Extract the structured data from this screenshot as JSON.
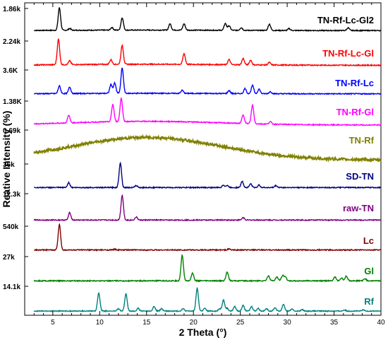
{
  "chart_data": {
    "type": "line",
    "xlabel": "2 Theta (°)",
    "ylabel": "Reative Intensity (%)",
    "xlim": [
      2,
      40
    ],
    "x_ticks": [
      "5",
      "10",
      "15",
      "20",
      "25",
      "30",
      "35",
      "40"
    ],
    "grid": false,
    "series": [
      {
        "name": "TN-Rf-Lc-Gl2",
        "scale_label": "1.86k",
        "color": "#000000",
        "peaks": [
          [
            5.7,
            1.0
          ],
          [
            6.8,
            0.08
          ],
          [
            11.3,
            0.12
          ],
          [
            12.4,
            0.55
          ],
          [
            17.5,
            0.28
          ],
          [
            19.0,
            0.28
          ],
          [
            23.4,
            0.3
          ],
          [
            23.8,
            0.2
          ],
          [
            25.1,
            0.12
          ],
          [
            28.1,
            0.28
          ],
          [
            30.2,
            0.08
          ],
          [
            36.5,
            0.12
          ]
        ],
        "baseline": 0.03,
        "hump": 0.02
      },
      {
        "name": "TN-Rf-Lc-Gl",
        "scale_label": "2.24k",
        "color": "#ff0000",
        "peaks": [
          [
            5.6,
            1.0
          ],
          [
            6.8,
            0.15
          ],
          [
            11.2,
            0.18
          ],
          [
            12.4,
            0.75
          ],
          [
            19.0,
            0.42
          ],
          [
            23.8,
            0.2
          ],
          [
            25.3,
            0.25
          ],
          [
            26.1,
            0.18
          ],
          [
            28.1,
            0.1
          ]
        ],
        "baseline": 0.03,
        "hump": 0.04
      },
      {
        "name": "TN-Rf-Lc",
        "scale_label": "3.6K",
        "color": "#0000ff",
        "peaks": [
          [
            5.7,
            0.3
          ],
          [
            6.8,
            0.25
          ],
          [
            11.2,
            0.35
          ],
          [
            11.6,
            0.4
          ],
          [
            12.4,
            1.0
          ],
          [
            18.8,
            0.12
          ],
          [
            23.8,
            0.12
          ],
          [
            25.5,
            0.2
          ],
          [
            26.3,
            0.32
          ],
          [
            27.0,
            0.18
          ],
          [
            28.2,
            0.08
          ]
        ],
        "baseline": 0.04,
        "hump": 0.02
      },
      {
        "name": "TN-Rf-Gl",
        "scale_label": "1.38K",
        "color": "#ff00ff",
        "peaks": [
          [
            6.7,
            0.3
          ],
          [
            11.4,
            0.7
          ],
          [
            12.3,
            0.95
          ],
          [
            25.3,
            0.35
          ],
          [
            26.3,
            0.75
          ],
          [
            28.2,
            0.1
          ]
        ],
        "baseline": 0.04,
        "hump": 0.15
      },
      {
        "name": "TN-Rf",
        "scale_label": "0.69k",
        "color": "#808000",
        "peaks": [],
        "baseline": 0.05,
        "hump": 1.0
      },
      {
        "name": "SD-TN",
        "scale_label": "36k",
        "color": "#000080",
        "peaks": [
          [
            6.7,
            0.2
          ],
          [
            12.2,
            1.0
          ],
          [
            13.9,
            0.08
          ],
          [
            23.2,
            0.1
          ],
          [
            23.6,
            0.08
          ],
          [
            25.2,
            0.25
          ],
          [
            26.1,
            0.15
          ],
          [
            27.0,
            0.1
          ],
          [
            28.8,
            0.08
          ]
        ],
        "baseline": 0.02,
        "hump": 0.0
      },
      {
        "name": "raw-TN",
        "scale_label": "12.3k",
        "color": "#800080",
        "peaks": [
          [
            6.8,
            0.3
          ],
          [
            12.4,
            1.0
          ],
          [
            13.9,
            0.12
          ],
          [
            25.3,
            0.1
          ]
        ],
        "baseline": 0.02,
        "hump": 0.0
      },
      {
        "name": "Lc",
        "scale_label": "540k",
        "color": "#800000",
        "peaks": [
          [
            5.7,
            1.0
          ],
          [
            11.6,
            0.03
          ],
          [
            23.8,
            0.04
          ]
        ],
        "baseline": 0.01,
        "hump": 0.0
      },
      {
        "name": "Gl",
        "scale_label": "27k",
        "color": "#008000",
        "peaks": [
          [
            18.8,
            1.0
          ],
          [
            19.9,
            0.3
          ],
          [
            23.6,
            0.35
          ],
          [
            28.0,
            0.2
          ],
          [
            28.9,
            0.15
          ],
          [
            29.5,
            0.2
          ],
          [
            29.8,
            0.15
          ],
          [
            35.1,
            0.15
          ],
          [
            35.8,
            0.1
          ],
          [
            36.3,
            0.18
          ],
          [
            38.3,
            0.08
          ]
        ],
        "baseline": 0.02,
        "hump": 0.0
      },
      {
        "name": "Rf",
        "scale_label": "14.1k",
        "color": "#008080",
        "peaks": [
          [
            9.9,
            0.8
          ],
          [
            12.0,
            0.1
          ],
          [
            12.8,
            0.75
          ],
          [
            14.1,
            0.12
          ],
          [
            15.8,
            0.2
          ],
          [
            16.6,
            0.1
          ],
          [
            18.9,
            0.1
          ],
          [
            20.4,
            1.0
          ],
          [
            21.2,
            0.12
          ],
          [
            22.8,
            0.1
          ],
          [
            23.2,
            0.5
          ],
          [
            23.6,
            0.12
          ],
          [
            24.4,
            0.2
          ],
          [
            25.3,
            0.25
          ],
          [
            26.2,
            0.2
          ],
          [
            26.9,
            0.12
          ],
          [
            27.8,
            0.1
          ],
          [
            28.7,
            0.15
          ],
          [
            29.6,
            0.3
          ],
          [
            30.5,
            0.08
          ],
          [
            31.6,
            0.06
          ],
          [
            36.1,
            0.05
          ],
          [
            38.1,
            0.05
          ]
        ],
        "baseline": 0.03,
        "hump": 0.0
      }
    ]
  }
}
